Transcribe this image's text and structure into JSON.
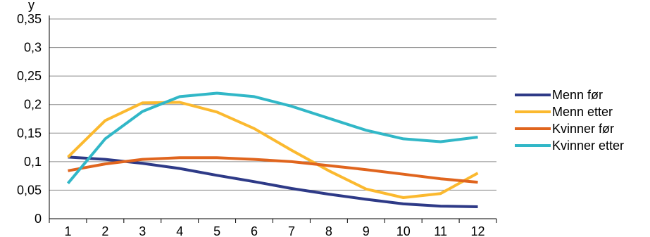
{
  "chart_data": {
    "type": "line",
    "title": "",
    "ylabel": "y",
    "xlabel": "",
    "x": [
      1,
      2,
      3,
      4,
      5,
      6,
      7,
      8,
      9,
      10,
      11,
      12
    ],
    "ylim": [
      0,
      0.35
    ],
    "yticks": [
      0,
      0.05,
      0.1,
      0.15,
      0.2,
      0.25,
      0.3,
      0.35
    ],
    "ytick_labels": [
      "0",
      "0,05",
      "0,1",
      "0,15",
      "0,2",
      "0,25",
      "0,3",
      "0,35"
    ],
    "grid": "horizontal",
    "legend_position": "right",
    "series": [
      {
        "name": "Menn før",
        "color": "#2e3a87",
        "values": [
          0.108,
          0.104,
          0.097,
          0.088,
          0.076,
          0.065,
          0.053,
          0.043,
          0.034,
          0.026,
          0.022,
          0.021
        ]
      },
      {
        "name": "Menn etter",
        "color": "#fbb92f",
        "values": [
          0.108,
          0.172,
          0.203,
          0.204,
          0.187,
          0.158,
          0.12,
          0.084,
          0.052,
          0.037,
          0.044,
          0.08
        ]
      },
      {
        "name": "Kvinner før",
        "color": "#e0651e",
        "values": [
          0.084,
          0.096,
          0.104,
          0.107,
          0.107,
          0.104,
          0.1,
          0.093,
          0.086,
          0.078,
          0.07,
          0.064
        ]
      },
      {
        "name": "Kvinner etter",
        "color": "#31b7c7",
        "values": [
          0.062,
          0.14,
          0.188,
          0.214,
          0.22,
          0.214,
          0.197,
          0.176,
          0.155,
          0.14,
          0.135,
          0.143
        ]
      }
    ]
  }
}
